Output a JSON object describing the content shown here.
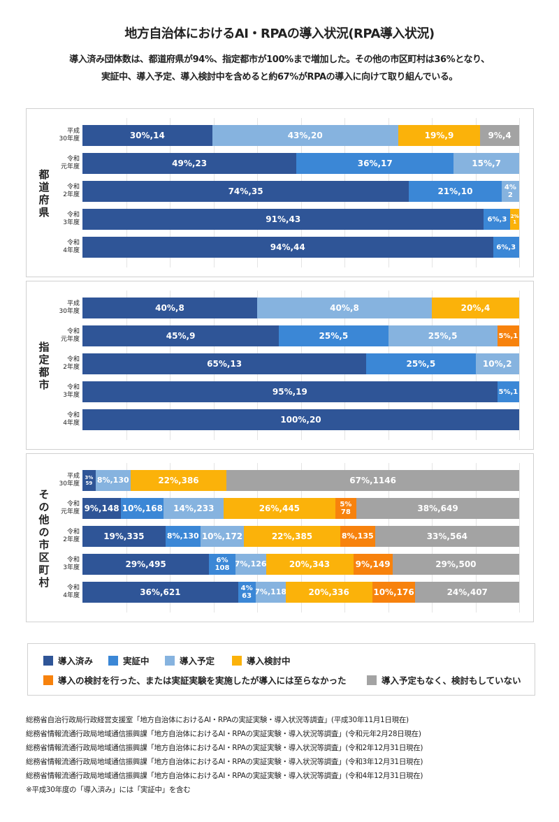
{
  "title": "地方自治体におけるAI・RPAの導入状況(RPA導入状況)",
  "subtitle_lines": [
    "導入済み団体数は、都道府県が94%、指定都市が100%まで増加した。その他の市区町村は36%となり、",
    "実証中、導入予定、導入検討中を含めると約67%がRPAの導入に向けて取り組んでいる。"
  ],
  "colors": {
    "導入済み": "#2f5597",
    "実証中": "#3b87d6",
    "導入予定": "#86b3df",
    "導入検討中": "#fbb20a",
    "導入の検討を行った、または実証実験を実施したが導入には至らなかった": "#f7820d",
    "導入予定もなく、検討もしていない": "#a3a3a3"
  },
  "legend": [
    {
      "key": "導入済み",
      "label": "導入済み"
    },
    {
      "key": "実証中",
      "label": "実証中"
    },
    {
      "key": "導入予定",
      "label": "導入予定"
    },
    {
      "key": "導入検討中",
      "label": "導入検討中"
    },
    {
      "key": "導入の検討を行った、または実証実験を実施したが導入には至らなかった",
      "label": "導入の検討を行った、または実証実験を実施したが導入には至らなかった"
    },
    {
      "key": "導入予定もなく、検討もしていない",
      "label": "導入予定もなく、検討もしていない"
    }
  ],
  "notes": [
    "総務省自治行政局行政経営支援室「地方自治体におけるAI・RPAの実証実験・導入状況等調査」(平成30年11月1日現在)",
    "総務省情報流通行政局地域通信振興課「地方自治体におけるAI・RPAの実証実験・導入状況等調査」(令和元年2月28日現在)",
    "総務省情報流通行政局地域通信振興課「地方自治体におけるAI・RPAの実証実験・導入状況等調査」(令和2年12月31日現在)",
    "総務省情報流通行政局地域通信振興課「地方自治体におけるAI・RPAの実証実験・導入状況等調査」(令和3年12月31日現在)",
    "総務省情報流通行政局地域通信振興課「地方自治体におけるAI・RPAの実証実験・導入状況等調査」(令和4年12月31日現在)",
    "※平成30年度の「導入済み」には「実証中」を含む"
  ],
  "chart_data": {
    "type": "bar",
    "orientation": "horizontal",
    "stacked": "100%",
    "categories": [
      "平成\n30年度",
      "令和\n元年度",
      "令和\n2年度",
      "令和\n3年度",
      "令和\n4年度"
    ],
    "series_names": [
      "導入済み",
      "実証中",
      "導入予定",
      "導入検討中",
      "導入の検討を行った、または実証実験を実施したが導入には至らなかった",
      "導入予定もなく、検討もしていない"
    ],
    "panels": [
      {
        "label": "都道府県",
        "rows": [
          {
            "percent": [
              30,
              0,
              43,
              19,
              0,
              9
            ],
            "count": [
              14,
              0,
              20,
              9,
              0,
              4
            ],
            "labels": [
              "30%,14",
              "",
              "43%,20",
              "19%,9",
              "",
              "9%,4"
            ]
          },
          {
            "percent": [
              49,
              36,
              15,
              0,
              0,
              0
            ],
            "count": [
              23,
              17,
              7,
              0,
              0,
              0
            ],
            "labels": [
              "49%,23",
              "36%,17",
              "15%,7",
              "",
              "",
              ""
            ]
          },
          {
            "percent": [
              74,
              21,
              4,
              0,
              0,
              0
            ],
            "count": [
              35,
              10,
              2,
              0,
              0,
              0
            ],
            "labels": [
              "74%,35",
              "21%,10",
              "4%\n2",
              "",
              "",
              ""
            ]
          },
          {
            "percent": [
              91,
              6,
              0,
              2,
              0,
              0
            ],
            "count": [
              43,
              3,
              0,
              1,
              0,
              0
            ],
            "labels": [
              "91%,43",
              "6%,3",
              "",
              "2%\n1",
              "",
              ""
            ]
          },
          {
            "percent": [
              94,
              6,
              0,
              0,
              0,
              0
            ],
            "count": [
              44,
              3,
              0,
              0,
              0,
              0
            ],
            "labels": [
              "94%,44",
              "6%,3",
              "",
              "",
              "",
              ""
            ]
          }
        ]
      },
      {
        "label": "指定都市",
        "rows": [
          {
            "percent": [
              40,
              0,
              40,
              20,
              0,
              0
            ],
            "count": [
              8,
              0,
              8,
              4,
              0,
              0
            ],
            "labels": [
              "40%,8",
              "",
              "40%,8",
              "20%,4",
              "",
              ""
            ]
          },
          {
            "percent": [
              45,
              25,
              25,
              0,
              5,
              0
            ],
            "count": [
              9,
              5,
              5,
              0,
              1,
              0
            ],
            "labels": [
              "45%,9",
              "25%,5",
              "25%,5",
              "",
              "5%,1",
              ""
            ]
          },
          {
            "percent": [
              65,
              25,
              10,
              0,
              0,
              0
            ],
            "count": [
              13,
              5,
              2,
              0,
              0,
              0
            ],
            "labels": [
              "65%,13",
              "25%,5",
              "10%,2",
              "",
              "",
              ""
            ]
          },
          {
            "percent": [
              95,
              5,
              0,
              0,
              0,
              0
            ],
            "count": [
              19,
              1,
              0,
              0,
              0,
              0
            ],
            "labels": [
              "95%,19",
              "5%,1",
              "",
              "",
              "",
              ""
            ]
          },
          {
            "percent": [
              100,
              0,
              0,
              0,
              0,
              0
            ],
            "count": [
              20,
              0,
              0,
              0,
              0,
              0
            ],
            "labels": [
              "100%,20",
              "",
              "",
              "",
              "",
              ""
            ]
          }
        ]
      },
      {
        "label": "その他の市区町村",
        "rows": [
          {
            "percent": [
              3,
              0,
              8,
              22,
              0,
              67
            ],
            "count": [
              59,
              0,
              130,
              386,
              0,
              1146
            ],
            "labels": [
              "3%\n59",
              "",
              "8%,130",
              "22%,386",
              "",
              "67%,1146"
            ]
          },
          {
            "percent": [
              9,
              10,
              14,
              26,
              5,
              38
            ],
            "count": [
              148,
              168,
              233,
              445,
              78,
              649
            ],
            "labels": [
              "9%,148",
              "10%,168",
              "14%,233",
              "26%,445",
              "5%\n78",
              "38%,649"
            ]
          },
          {
            "percent": [
              19,
              8,
              10,
              22,
              8,
              33
            ],
            "count": [
              335,
              130,
              172,
              385,
              135,
              564
            ],
            "labels": [
              "19%,335",
              "8%,130",
              "10%,172",
              "22%,385",
              "8%,135",
              "33%,564"
            ]
          },
          {
            "percent": [
              29,
              6,
              7,
              20,
              9,
              29
            ],
            "count": [
              495,
              108,
              126,
              343,
              149,
              500
            ],
            "labels": [
              "29%,495",
              "6%\n108",
              "7%,126",
              "20%,343",
              "9%,149",
              "29%,500"
            ]
          },
          {
            "percent": [
              36,
              4,
              7,
              20,
              10,
              24
            ],
            "count": [
              621,
              63,
              118,
              336,
              176,
              407
            ],
            "labels": [
              "36%,621",
              "4%\n63",
              "7%,118",
              "20%,336",
              "10%,176",
              "24%,407"
            ]
          }
        ]
      }
    ]
  }
}
